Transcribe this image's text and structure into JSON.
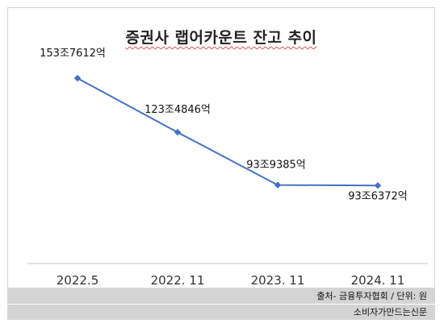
{
  "chart_data": {
    "type": "line",
    "title": "증권사 랩어카운트 잔고 추이",
    "categories": [
      "2022.5",
      "2022. 11",
      "2023. 11",
      "2024. 11"
    ],
    "series": [
      {
        "values": [
          153.7612,
          123.4846,
          93.9385,
          93.6372
        ],
        "labels": [
          "153조7612억",
          "123조4846억",
          "93조9385억",
          "93조6372억"
        ]
      }
    ],
    "xlabel": "",
    "ylabel": "",
    "ylim": [
      50,
      175
    ],
    "grid": false,
    "legend": "none",
    "colors": {
      "line": "#4472c4",
      "marker": "#4472c4",
      "axis": "#d9d9d9"
    }
  },
  "footer": {
    "source": "출처- 금융투자협회 / 단위: 원",
    "publisher": "소비자가만드는신문"
  }
}
